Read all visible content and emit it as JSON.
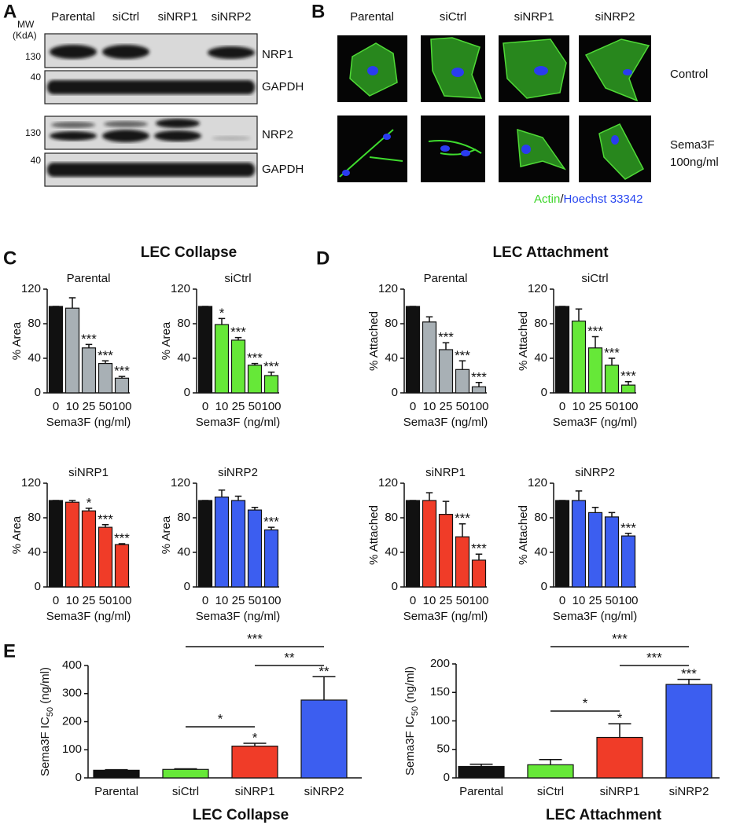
{
  "panel_a": {
    "label": "A",
    "mw": [
      "MW",
      "(KdA)"
    ],
    "lanes": [
      "Parental",
      "siCtrl",
      "siNRP1",
      "siNRP2"
    ],
    "blots": [
      {
        "name": "NRP1",
        "marker": 130
      },
      {
        "name": "GAPDH",
        "marker": 40
      },
      {
        "name": "NRP2",
        "marker": 130
      },
      {
        "name": "GAPDH",
        "marker": 40
      }
    ]
  },
  "panel_b": {
    "label": "B",
    "columns": [
      "Parental",
      "siCtrl",
      "siNRP1",
      "siNRP2"
    ],
    "rows": [
      [
        "Control"
      ],
      [
        "Sema3F",
        "100ng/ml"
      ]
    ],
    "caption": {
      "actin": "Actin",
      "separator": "/",
      "nuclei": "Hoechst 33342"
    }
  },
  "panels": [
    {
      "label": "C",
      "title": "LEC Collapse"
    },
    {
      "label": "D",
      "title": "LEC Attachment"
    },
    {
      "label": "E"
    }
  ],
  "chart_data": [
    {
      "type": "bar",
      "title": "Parental",
      "ylabel": "% Area",
      "xlabel": "Sema3F (ng/ml)",
      "categories": [
        "0",
        "10",
        "25",
        "50",
        "100"
      ],
      "values": [
        100,
        98,
        52,
        34,
        17
      ],
      "errors": [
        0,
        12,
        4,
        3,
        2
      ],
      "significance": [
        null,
        null,
        "***",
        "***",
        "***"
      ],
      "colors": [
        "#111111",
        "#a8b0b5",
        "#a8b0b5",
        "#a8b0b5",
        "#a8b0b5"
      ],
      "ylim": [
        0,
        120
      ],
      "yticks": [
        0,
        40,
        80,
        120
      ]
    },
    {
      "type": "bar",
      "title": "siCtrl",
      "ylabel": "% Area",
      "xlabel": "Sema3F (ng/ml)",
      "categories": [
        "0",
        "10",
        "25",
        "50",
        "100"
      ],
      "values": [
        100,
        79,
        61,
        32,
        20
      ],
      "errors": [
        0,
        7,
        3,
        2,
        4
      ],
      "significance": [
        null,
        "*",
        "***",
        "***",
        "***"
      ],
      "colors": [
        "#111111",
        "#66e838",
        "#66e838",
        "#66e838",
        "#66e838"
      ],
      "ylim": [
        0,
        120
      ],
      "yticks": [
        0,
        40,
        80,
        120
      ]
    },
    {
      "type": "bar",
      "title": "siNRP1",
      "ylabel": "% Area",
      "xlabel": "Sema3F (ng/ml)",
      "categories": [
        "0",
        "10",
        "25",
        "50",
        "100"
      ],
      "values": [
        100,
        98,
        88,
        69,
        49
      ],
      "errors": [
        0,
        2,
        3,
        3,
        1
      ],
      "significance": [
        null,
        null,
        "*",
        "***",
        "***"
      ],
      "colors": [
        "#111111",
        "#f03c28",
        "#f03c28",
        "#f03c28",
        "#f03c28"
      ],
      "ylim": [
        0,
        120
      ],
      "yticks": [
        0,
        40,
        80,
        120
      ]
    },
    {
      "type": "bar",
      "title": "siNRP2",
      "ylabel": "% Area",
      "xlabel": "Sema3F (ng/ml)",
      "categories": [
        "0",
        "10",
        "25",
        "50",
        "100"
      ],
      "values": [
        100,
        104,
        100,
        89,
        66
      ],
      "errors": [
        0,
        8,
        5,
        3,
        3
      ],
      "significance": [
        null,
        null,
        null,
        null,
        "***"
      ],
      "colors": [
        "#111111",
        "#3c5ef0",
        "#3c5ef0",
        "#3c5ef0",
        "#3c5ef0"
      ],
      "ylim": [
        0,
        120
      ],
      "yticks": [
        0,
        40,
        80,
        120
      ]
    },
    {
      "type": "bar",
      "title": "Parental",
      "ylabel": "% Attached",
      "xlabel": "Sema3F (ng/ml)",
      "categories": [
        "0",
        "10",
        "25",
        "50",
        "100"
      ],
      "values": [
        100,
        82,
        50,
        27,
        7
      ],
      "errors": [
        0,
        6,
        8,
        10,
        5
      ],
      "significance": [
        null,
        null,
        "***",
        "***",
        "***"
      ],
      "colors": [
        "#111111",
        "#a8b0b5",
        "#a8b0b5",
        "#a8b0b5",
        "#a8b0b5"
      ],
      "ylim": [
        0,
        120
      ],
      "yticks": [
        0,
        40,
        80,
        120
      ]
    },
    {
      "type": "bar",
      "title": "siCtrl",
      "ylabel": "% Attached",
      "xlabel": "Sema3F (ng/ml)",
      "categories": [
        "0",
        "10",
        "25",
        "50",
        "100"
      ],
      "values": [
        100,
        83,
        52,
        32,
        9
      ],
      "errors": [
        0,
        14,
        13,
        8,
        4
      ],
      "significance": [
        null,
        null,
        "***",
        "***",
        "***"
      ],
      "colors": [
        "#111111",
        "#66e838",
        "#66e838",
        "#66e838",
        "#66e838"
      ],
      "ylim": [
        0,
        120
      ],
      "yticks": [
        0,
        40,
        80,
        120
      ]
    },
    {
      "type": "bar",
      "title": "siNRP1",
      "ylabel": "% Attached",
      "xlabel": "Sema3F (ng/ml)",
      "categories": [
        "0",
        "10",
        "25",
        "50",
        "100"
      ],
      "values": [
        100,
        100,
        84,
        58,
        31
      ],
      "errors": [
        0,
        9,
        15,
        15,
        7
      ],
      "significance": [
        null,
        null,
        null,
        "***",
        "***"
      ],
      "colors": [
        "#111111",
        "#f03c28",
        "#f03c28",
        "#f03c28",
        "#f03c28"
      ],
      "ylim": [
        0,
        120
      ],
      "yticks": [
        0,
        40,
        80,
        120
      ]
    },
    {
      "type": "bar",
      "title": "siNRP2",
      "ylabel": "% Attached",
      "xlabel": "Sema3F (ng/ml)",
      "categories": [
        "0",
        "10",
        "25",
        "50",
        "100"
      ],
      "values": [
        100,
        100,
        86,
        81,
        59
      ],
      "errors": [
        0,
        11,
        6,
        5,
        3
      ],
      "significance": [
        null,
        null,
        null,
        null,
        "***"
      ],
      "colors": [
        "#111111",
        "#3c5ef0",
        "#3c5ef0",
        "#3c5ef0",
        "#3c5ef0"
      ],
      "ylim": [
        0,
        120
      ],
      "yticks": [
        0,
        40,
        80,
        120
      ]
    },
    {
      "type": "bar",
      "ylabel": [
        "Sema3F IC",
        "50",
        " (ng/ml)"
      ],
      "xlabel": "LEC Collapse",
      "categories": [
        "Parental",
        "siCtrl",
        "siNRP1",
        "siNRP2"
      ],
      "values": [
        27,
        30,
        113,
        277
      ],
      "errors": [
        2,
        2,
        10,
        83
      ],
      "significance": [
        null,
        null,
        "*",
        "**"
      ],
      "comparisons": [
        {
          "from": "siCtrl",
          "to": "siNRP2",
          "label": "***"
        },
        {
          "from": "siNRP1",
          "to": "siNRP2",
          "label": "**"
        },
        {
          "from": "siCtrl",
          "to": "siNRP1",
          "label": "*"
        }
      ],
      "colors": [
        "#111111",
        "#66e838",
        "#f03c28",
        "#3c5ef0"
      ],
      "ylim": [
        0,
        400
      ],
      "yticks": [
        0,
        100,
        200,
        300,
        400
      ]
    },
    {
      "type": "bar",
      "ylabel": [
        "Sema3F IC",
        "50",
        " (ng/ml)"
      ],
      "xlabel": "LEC Attachment",
      "categories": [
        "Parental",
        "siCtrl",
        "siNRP1",
        "siNRP2"
      ],
      "values": [
        20,
        23,
        71,
        164
      ],
      "errors": [
        4,
        9,
        24,
        9
      ],
      "significance": [
        null,
        null,
        "*",
        "***"
      ],
      "comparisons": [
        {
          "from": "siCtrl",
          "to": "siNRP2",
          "label": "***"
        },
        {
          "from": "siNRP1",
          "to": "siNRP2",
          "label": "***"
        },
        {
          "from": "siCtrl",
          "to": "siNRP1",
          "label": "*"
        }
      ],
      "colors": [
        "#111111",
        "#66e838",
        "#f03c28",
        "#3c5ef0"
      ],
      "ylim": [
        0,
        200
      ],
      "yticks": [
        0,
        50,
        100,
        150,
        200
      ]
    }
  ]
}
